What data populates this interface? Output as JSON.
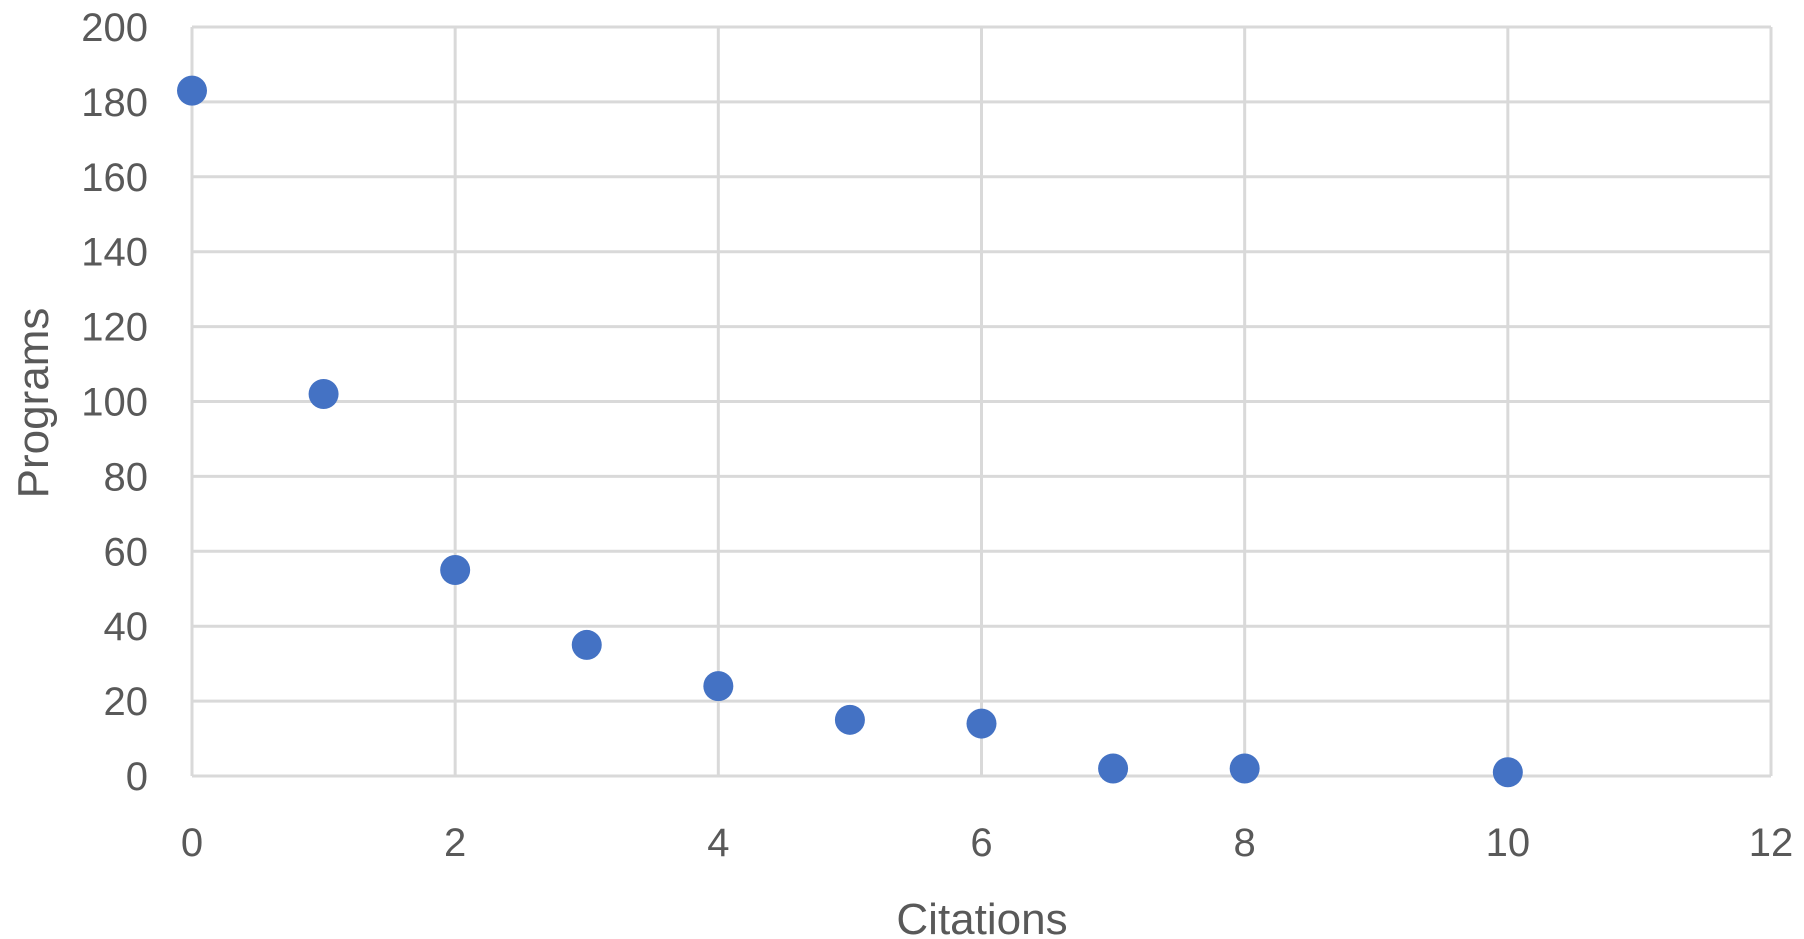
{
  "chart_data": {
    "type": "scatter",
    "xlabel": "Citations",
    "ylabel": "Programs",
    "xlim": [
      0,
      12
    ],
    "ylim": [
      0,
      200
    ],
    "xticks": [
      0,
      2,
      4,
      6,
      8,
      10,
      12
    ],
    "yticks": [
      0,
      20,
      40,
      60,
      80,
      100,
      120,
      140,
      160,
      180,
      200
    ],
    "grid": true,
    "legend": "none",
    "points": [
      {
        "x": 0,
        "y": 183
      },
      {
        "x": 1,
        "y": 102
      },
      {
        "x": 2,
        "y": 55
      },
      {
        "x": 3,
        "y": 35
      },
      {
        "x": 4,
        "y": 24
      },
      {
        "x": 5,
        "y": 15
      },
      {
        "x": 6,
        "y": 14
      },
      {
        "x": 7,
        "y": 2
      },
      {
        "x": 8,
        "y": 2
      },
      {
        "x": 10,
        "y": 1
      }
    ],
    "marker_color": "#4472c4",
    "grid_color": "#d9d9d9",
    "text_color": "#595959"
  }
}
